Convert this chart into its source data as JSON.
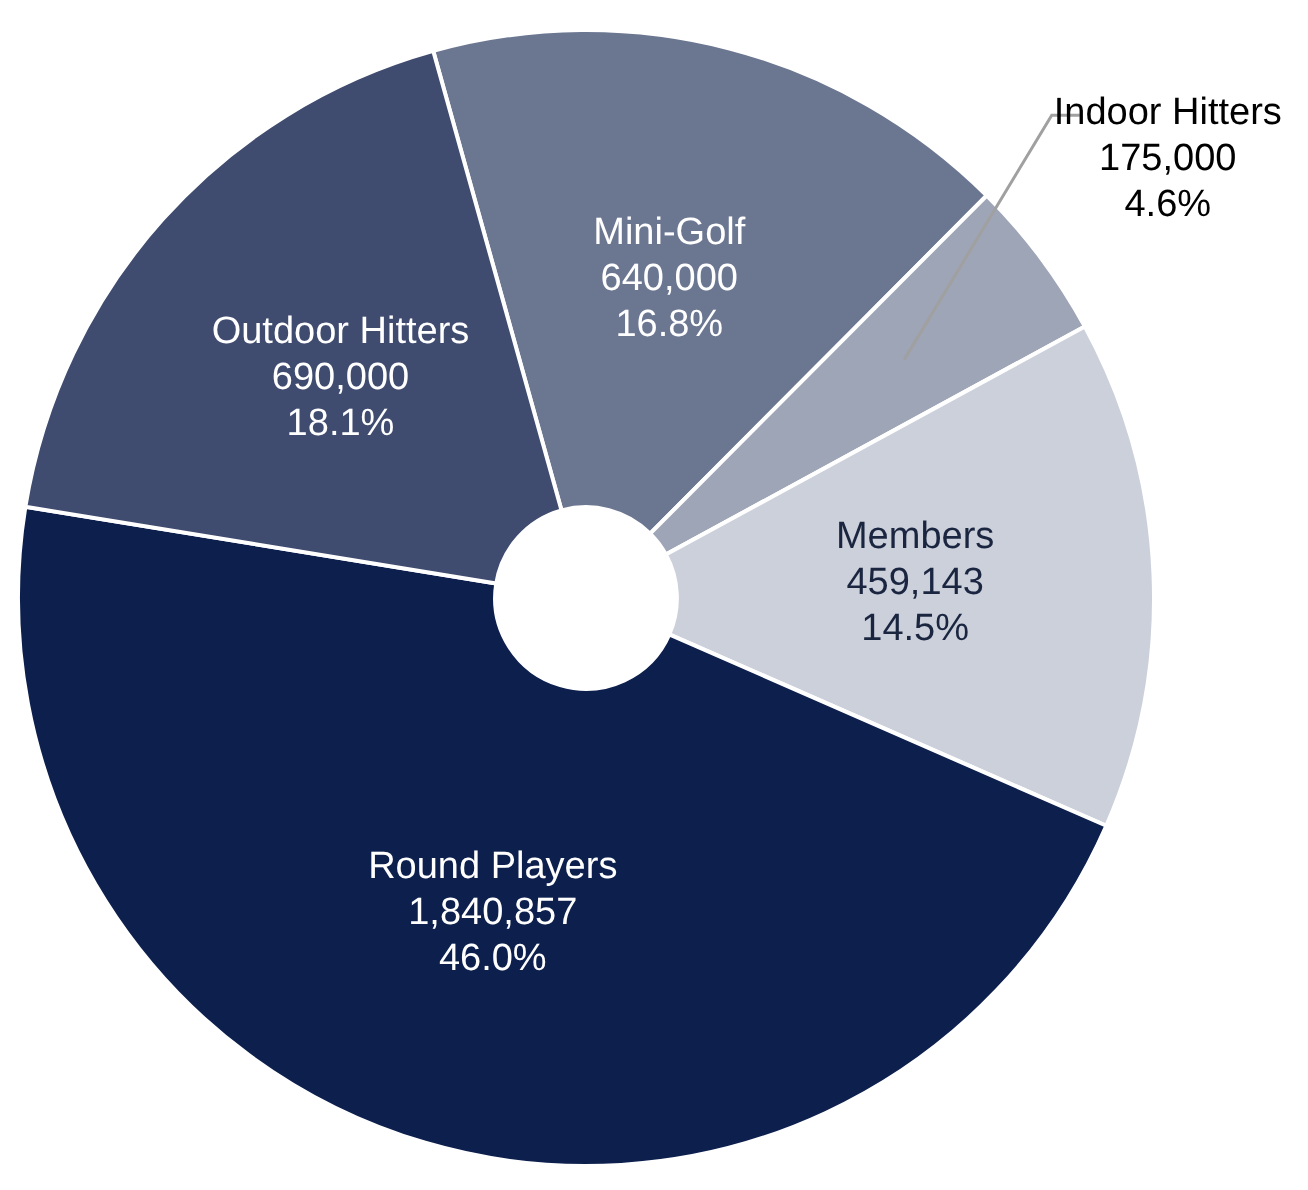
{
  "chart_data": {
    "type": "donut",
    "categories": [
      "Mini-Golf",
      "Indoor Hitters",
      "Members",
      "Round Players",
      "Outdoor Hitters"
    ],
    "values": [
      16.8,
      4.6,
      14.5,
      46.0,
      18.1
    ],
    "value_labels": [
      "640,000\n16.8%",
      "175,000\n4.6%",
      "459,143\n14.5%",
      "1,840,857\n46.0%",
      "690,000\n18.1%"
    ],
    "colors": [
      "#6b7691",
      "#9ea5b7",
      "#ccd0db",
      "#0c1f4d",
      "#3f4b6f"
    ],
    "legend": false
  }
}
